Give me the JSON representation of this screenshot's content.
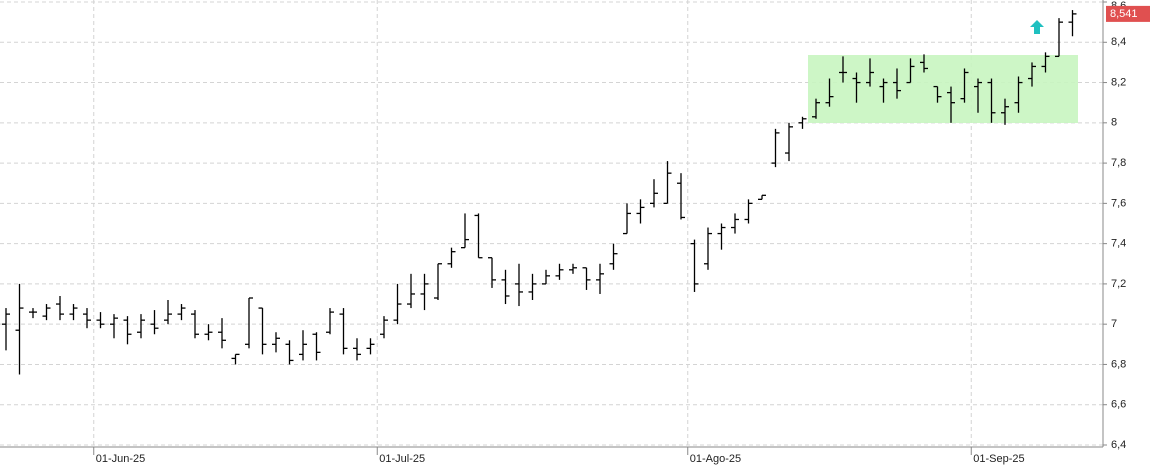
{
  "chart_data": {
    "type": "ohlc",
    "color": "#000000",
    "grid": true,
    "categories": [
      null,
      null,
      null,
      null,
      null,
      null,
      null,
      "01-Jun-25",
      null,
      null,
      null,
      null,
      null,
      null,
      null,
      null,
      null,
      null,
      null,
      null,
      null,
      null,
      null,
      null,
      null,
      null,
      null,
      null,
      "01-Jul-25",
      null,
      null,
      null,
      null,
      null,
      null,
      null,
      null,
      null,
      null,
      null,
      null,
      null,
      null,
      null,
      null,
      null,
      null,
      null,
      null,
      null,
      null,
      "01-Ago-25",
      null,
      null,
      null,
      null,
      null,
      null,
      null,
      null,
      null,
      null,
      null,
      null,
      null,
      null,
      null,
      null,
      null,
      null,
      null,
      null,
      "01-Sep-25",
      null,
      null,
      null,
      null,
      null,
      null,
      null
    ],
    "open": [
      7.0,
      6.97,
      7.06,
      7.04,
      7.1,
      7.05,
      7.05,
      7.02,
      7.0,
      7.02,
      6.96,
      7.0,
      7.02,
      7.05,
      7.05,
      6.95,
      6.96,
      6.83,
      6.9,
      7.08,
      6.9,
      6.9,
      6.85,
      6.95,
      6.96,
      7.05,
      6.88,
      6.88,
      6.95,
      7.02,
      7.1,
      7.15,
      7.13,
      7.3,
      7.38,
      7.54,
      7.33,
      7.22,
      7.2,
      7.16,
      7.2,
      7.24,
      7.27,
      7.28,
      7.22,
      7.3,
      7.45,
      7.55,
      7.6,
      7.6,
      7.7,
      7.4,
      7.3,
      7.45,
      7.48,
      7.52,
      7.62,
      7.8,
      7.85,
      8.0,
      8.03,
      8.1,
      8.25,
      8.22,
      8.2,
      8.18,
      8.2,
      8.2,
      8.3,
      8.18,
      8.15,
      8.12,
      8.18,
      8.2,
      8.05,
      8.1,
      8.22,
      8.28,
      8.33,
      8.5
    ],
    "high": [
      7.08,
      7.2,
      7.08,
      7.1,
      7.14,
      7.1,
      7.08,
      7.06,
      7.05,
      7.04,
      7.05,
      7.07,
      7.12,
      7.1,
      7.07,
      7.0,
      7.03,
      6.85,
      7.13,
      7.08,
      6.96,
      6.92,
      6.97,
      6.96,
      7.08,
      7.08,
      6.93,
      6.93,
      7.04,
      7.2,
      7.25,
      7.25,
      7.3,
      7.38,
      7.55,
      7.55,
      7.33,
      7.27,
      7.3,
      7.25,
      7.27,
      7.3,
      7.3,
      7.28,
      7.3,
      7.4,
      7.6,
      7.62,
      7.72,
      7.81,
      7.75,
      7.42,
      7.48,
      7.5,
      7.55,
      7.62,
      7.64,
      7.97,
      8.0,
      8.03,
      8.12,
      8.22,
      8.33,
      8.25,
      8.32,
      8.22,
      8.27,
      8.32,
      8.34,
      8.18,
      8.18,
      8.27,
      8.22,
      8.22,
      8.12,
      8.23,
      8.3,
      8.35,
      8.52,
      8.56
    ],
    "low": [
      6.87,
      6.75,
      7.03,
      7.02,
      7.02,
      7.02,
      6.98,
      6.98,
      6.93,
      6.9,
      6.93,
      6.95,
      7.0,
      7.02,
      6.93,
      6.92,
      6.88,
      6.8,
      6.88,
      6.85,
      6.86,
      6.8,
      6.82,
      6.82,
      6.95,
      6.85,
      6.82,
      6.85,
      6.93,
      7.0,
      7.08,
      7.07,
      7.12,
      7.28,
      7.38,
      7.33,
      7.18,
      7.1,
      7.09,
      7.12,
      7.2,
      7.22,
      7.25,
      7.17,
      7.15,
      7.27,
      7.45,
      7.5,
      7.58,
      7.6,
      7.52,
      7.16,
      7.27,
      7.37,
      7.45,
      7.5,
      7.62,
      7.78,
      7.81,
      7.97,
      8.02,
      8.08,
      8.2,
      8.1,
      8.18,
      8.1,
      8.12,
      8.2,
      8.25,
      8.1,
      8.0,
      8.1,
      8.05,
      8.0,
      7.99,
      8.05,
      8.18,
      8.25,
      8.33,
      8.43
    ],
    "close": [
      7.05,
      7.08,
      7.06,
      7.08,
      7.05,
      7.08,
      7.02,
      7.0,
      7.03,
      6.95,
      7.02,
      6.98,
      7.05,
      7.08,
      6.95,
      6.96,
      6.92,
      6.85,
      7.13,
      6.9,
      6.93,
      6.82,
      6.9,
      6.86,
      7.06,
      6.88,
      6.85,
      6.9,
      7.02,
      7.1,
      7.15,
      7.2,
      7.3,
      7.36,
      7.42,
      7.33,
      7.22,
      7.14,
      7.16,
      7.2,
      7.24,
      7.27,
      7.28,
      7.22,
      7.25,
      7.35,
      7.55,
      7.58,
      7.65,
      7.75,
      7.53,
      7.2,
      7.45,
      7.48,
      7.52,
      7.6,
      7.64,
      7.95,
      7.98,
      8.02,
      8.1,
      8.13,
      8.25,
      8.2,
      8.25,
      8.2,
      8.16,
      8.28,
      8.27,
      8.13,
      8.1,
      8.25,
      8.2,
      8.05,
      8.08,
      8.2,
      8.28,
      8.33,
      8.5,
      8.541
    ],
    "last_price": {
      "value": 8.541,
      "label": "8,541"
    },
    "ylim": [
      6.39,
      8.61
    ],
    "yticks": [
      {
        "value": 6.4,
        "label": "6,4"
      },
      {
        "value": 6.6,
        "label": "6,6"
      },
      {
        "value": 6.8,
        "label": "6,8"
      },
      7,
      {
        "value": 7.2,
        "label": "7,2"
      },
      {
        "value": 7.4,
        "label": "7,4"
      },
      {
        "value": 7.6,
        "label": "7,6"
      },
      {
        "value": 7.8,
        "label": "7,8"
      },
      8,
      {
        "value": 8.2,
        "label": "8,2"
      },
      {
        "value": 8.4,
        "label": "8,4"
      },
      {
        "value": 8.6,
        "label": "8,6"
      }
    ]
  }
}
